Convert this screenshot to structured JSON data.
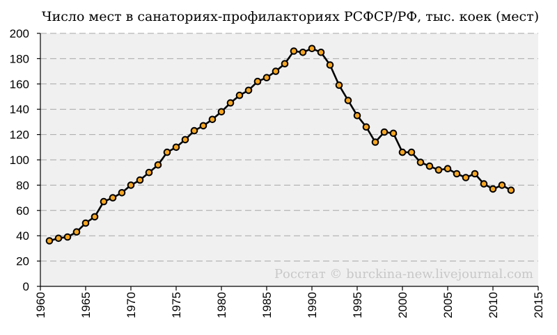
{
  "chart_data": {
    "type": "line",
    "title": "Число мест в санаториях-профилакториях РСФСР/РФ, тыс. коек (мест)",
    "watermark": "Росстат © burckina-new.livejournal.com",
    "xlabel": "",
    "ylabel": "",
    "xlim": [
      1960,
      2015
    ],
    "ylim": [
      0,
      200
    ],
    "x_ticks": [
      "1960",
      "1965",
      "1970",
      "1975",
      "1980",
      "1985",
      "1990",
      "1995",
      "2000",
      "2005",
      "2010",
      "2015"
    ],
    "y_ticks": [
      "0",
      "20",
      "40",
      "60",
      "80",
      "100",
      "120",
      "140",
      "160",
      "180",
      "200"
    ],
    "grid": true,
    "legend": "none",
    "colors": {
      "line": "#000000",
      "marker_fill": "#f5a623",
      "marker_edge": "#000000",
      "plot_bg": "#f0f0f0",
      "grid": "#a6a6a6"
    },
    "series": [
      {
        "x": [
          1961,
          1962,
          1963,
          1964,
          1965,
          1966,
          1967,
          1968,
          1969,
          1970,
          1971,
          1972,
          1973,
          1974,
          1975,
          1976,
          1977,
          1978,
          1979,
          1980,
          1981,
          1982,
          1983,
          1984,
          1985,
          1986,
          1987,
          1988,
          1989,
          1990,
          1991,
          1992,
          1993,
          1994,
          1995,
          1996,
          1997,
          1998,
          1999,
          2000,
          2001,
          2002,
          2003,
          2004,
          2005,
          2006,
          2007,
          2008,
          2009,
          2010,
          2011,
          2012
        ],
        "values": [
          36,
          38,
          39,
          43,
          50,
          55,
          67,
          70,
          74,
          80,
          84,
          90,
          96,
          106,
          110,
          116,
          123,
          127,
          132,
          138,
          145,
          151,
          155,
          162,
          165,
          170,
          176,
          186,
          185,
          188,
          185,
          175,
          159,
          147,
          135,
          126,
          114,
          122,
          121,
          106,
          106,
          98,
          95,
          92,
          93,
          89,
          86,
          89,
          81,
          77,
          80,
          76
        ]
      }
    ]
  }
}
